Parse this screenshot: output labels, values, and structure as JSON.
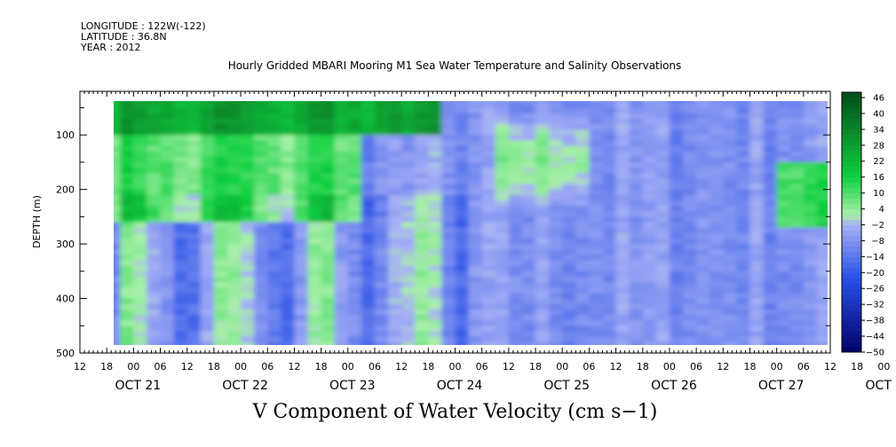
{
  "header": {
    "longitude": "LONGITUDE : 122W(-122)",
    "latitude": "LATITUDE : 36.8N",
    "year": "YEAR : 2012"
  },
  "chart_data": {
    "type": "heatmap",
    "title": "Hourly Gridded MBARI Mooring M1 Sea Water Temperature and Salinity Observations",
    "subtitle": "V Component of Water Velocity (cm s−1)",
    "ylabel": "DEPTH (m)",
    "ylim": [
      500,
      20
    ],
    "y_inverted": true,
    "y_ticks": [
      100,
      200,
      300,
      400,
      500
    ],
    "y_tick_labels": [
      "100",
      "200",
      "300",
      "400",
      "500"
    ],
    "x_range": [
      "2012-10-21 12:00",
      "2012-10-28 12:00"
    ],
    "x_hour_tick_labels": [
      "12",
      "18",
      "00",
      "06",
      "12",
      "18",
      "00",
      "06",
      "12",
      "18",
      "00",
      "06",
      "12",
      "18",
      "00",
      "06",
      "12",
      "18",
      "00",
      "06",
      "12",
      "18",
      "00",
      "06",
      "12",
      "18",
      "00",
      "06",
      "12",
      "18",
      "00",
      "06",
      "12",
      "18",
      "00",
      "06"
    ],
    "x_date_labels": [
      "OCT 21",
      "OCT 22",
      "OCT 23",
      "OCT 24",
      "OCT 25",
      "OCT 26",
      "OCT 27",
      "OCT 28"
    ],
    "colorbar": {
      "levels": [
        -50,
        -48,
        -46,
        -44,
        -42,
        -40,
        -38,
        -36,
        -34,
        -32,
        -30,
        -28,
        -26,
        -24,
        -22,
        -20,
        -18,
        -16,
        -14,
        -12,
        -10,
        -8,
        -6,
        -4,
        -2,
        0,
        2,
        4,
        6,
        8,
        10,
        12,
        14,
        16,
        18,
        20,
        22,
        24,
        26,
        28,
        30,
        32,
        34,
        36,
        38,
        40,
        42,
        44,
        46,
        48
      ],
      "labels": [
        "46",
        "40",
        "34",
        "28",
        "22",
        "16",
        "10",
        "4",
        "−2",
        "−8",
        "−14",
        "−20",
        "−26",
        "−32",
        "−38",
        "−44",
        "−50"
      ],
      "label_values": [
        46,
        40,
        34,
        28,
        22,
        16,
        10,
        4,
        -2,
        -8,
        -14,
        -20,
        -26,
        -32,
        -38,
        -44,
        -50
      ],
      "colors": {
        "strong_negative": "#00006a",
        "negative": "#2850e6",
        "weak_negative": "#a7b0f6",
        "weak_positive": "#a8f0a8",
        "positive": "#10d040",
        "strong_positive": "#004d18"
      }
    },
    "data_coverage": {
      "start": "2012-10-21 18:00",
      "end": "2012-10-28 12:00",
      "depth_min": 20,
      "depth_max": 485
    },
    "description_of_field": [
      {
        "depth_range": [
          20,
          90
        ],
        "time_range": [
          "2012-10-21 18:00",
          "2012-10-24 18:00"
        ],
        "approx_value": 26
      },
      {
        "depth_range": [
          20,
          250
        ],
        "time_range": [
          "2012-10-21 18:00",
          "2012-10-24 00:00"
        ],
        "approx_value": 10
      },
      {
        "depth_range": [
          250,
          485
        ],
        "time_range": [
          "2012-10-21 18:00",
          "2012-10-24 18:00"
        ],
        "approx_value": -6
      },
      {
        "depth_range": [
          20,
          485
        ],
        "time_range": [
          "2012-10-25 00:00",
          "2012-10-27 18:00"
        ],
        "approx_value": -12
      },
      {
        "depth_range": [
          150,
          260
        ],
        "time_range": [
          "2012-10-28 00:00",
          "2012-10-28 12:00"
        ],
        "approx_value": 12
      }
    ]
  }
}
